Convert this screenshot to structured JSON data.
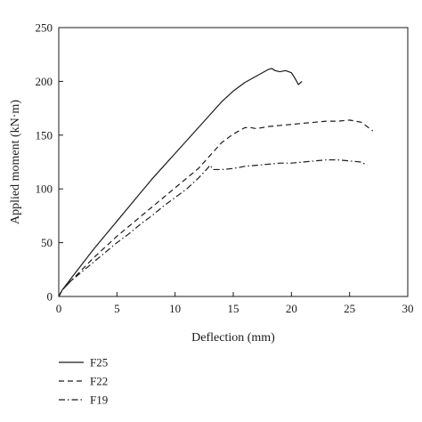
{
  "chart_data": {
    "type": "line",
    "xlabel": "Deflection (mm)",
    "ylabel": "Applied moment (kN·m)",
    "xlim": [
      0,
      30
    ],
    "ylim": [
      0,
      250
    ],
    "xticks": [
      "0",
      "5",
      "10",
      "15",
      "20",
      "25",
      "30"
    ],
    "yticks": [
      "0",
      "50",
      "100",
      "150",
      "200",
      "250"
    ],
    "grid": false,
    "legend_position": "bottom-left, below plot",
    "series": [
      {
        "name": "F25",
        "dash": "solid",
        "x": [
          0,
          0.3,
          1,
          2,
          3,
          4,
          5,
          6,
          7,
          8,
          9,
          10,
          11,
          12,
          13,
          14,
          15,
          16,
          17,
          17.5,
          18,
          18.3,
          18.6,
          19,
          19.5,
          20,
          20.3,
          20.6,
          20.9
        ],
        "y": [
          0,
          6,
          16,
          30,
          44,
          57,
          70,
          83,
          96,
          109,
          121,
          133,
          145,
          157,
          169,
          181,
          191,
          199,
          205,
          208,
          211,
          212,
          210,
          209,
          210,
          208,
          203,
          197,
          200
        ]
      },
      {
        "name": "F22",
        "dash": "dashed",
        "x": [
          0,
          0.3,
          1,
          2,
          3,
          4,
          5,
          6,
          7,
          8,
          9,
          10,
          11,
          12,
          13,
          14,
          15,
          16,
          16.5,
          17,
          18,
          19,
          20,
          21,
          22,
          23,
          24,
          25,
          26,
          26.5,
          27
        ],
        "y": [
          0,
          6,
          14,
          25,
          36,
          46,
          56,
          65,
          74,
          83,
          92,
          101,
          110,
          119,
          131,
          143,
          151,
          157,
          157,
          156,
          158,
          159,
          160,
          161,
          162,
          163,
          163,
          164,
          162,
          158,
          154
        ]
      },
      {
        "name": "F19",
        "dash": "dash-dot",
        "x": [
          0,
          0.3,
          1,
          2,
          3,
          4,
          5,
          6,
          7,
          8,
          9,
          10,
          11,
          12,
          12.7,
          13,
          13.3,
          14,
          15,
          16,
          17,
          18,
          19,
          20,
          21,
          22,
          23,
          24,
          25,
          26,
          26.5
        ],
        "y": [
          0,
          6,
          14,
          23,
          32,
          41,
          50,
          58,
          67,
          75,
          84,
          92,
          100,
          110,
          118,
          122,
          118,
          118,
          119,
          121,
          122,
          123,
          124,
          124,
          125,
          126,
          127,
          127,
          126,
          125,
          122
        ]
      }
    ]
  }
}
